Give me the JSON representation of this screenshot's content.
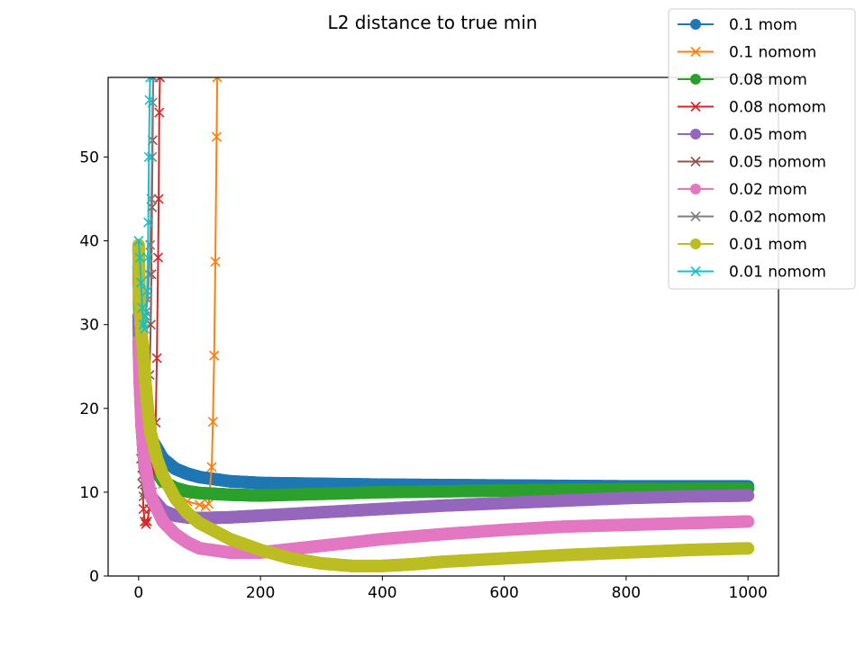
{
  "chart_data": {
    "type": "line",
    "title": "L2 distance to true min",
    "xlabel": "",
    "ylabel": "",
    "xlim": [
      -50,
      1050
    ],
    "ylim": [
      0,
      59.5
    ],
    "x_ticks": [
      0,
      200,
      400,
      600,
      800,
      1000
    ],
    "y_ticks": [
      0,
      10,
      20,
      30,
      40,
      50
    ],
    "grid": false,
    "legend_position": "top-right",
    "series": [
      {
        "name": "0.1 mom",
        "color": "#1f77b4",
        "marker": "circle",
        "kind": "mom",
        "points": [
          [
            0,
            37
          ],
          [
            2,
            30
          ],
          [
            5,
            24
          ],
          [
            10,
            19
          ],
          [
            20,
            16.5
          ],
          [
            40,
            14
          ],
          [
            60,
            12.8
          ],
          [
            80,
            12.2
          ],
          [
            100,
            11.8
          ],
          [
            150,
            11.3
          ],
          [
            200,
            11.1
          ],
          [
            300,
            11.0
          ],
          [
            400,
            10.9
          ],
          [
            500,
            10.85
          ],
          [
            600,
            10.8
          ],
          [
            700,
            10.75
          ],
          [
            800,
            10.7
          ],
          [
            900,
            10.7
          ],
          [
            1000,
            10.7
          ]
        ]
      },
      {
        "name": "0.1 nomom",
        "color": "#ff7f0e",
        "marker": "x",
        "kind": "nomom",
        "points": [
          [
            0,
            35
          ],
          [
            2,
            30
          ],
          [
            5,
            24
          ],
          [
            10,
            19
          ],
          [
            20,
            15
          ],
          [
            40,
            11
          ],
          [
            60,
            9.5
          ],
          [
            80,
            8.9
          ],
          [
            100,
            8.5
          ],
          [
            110,
            8.3
          ],
          [
            115,
            8.6
          ],
          [
            120,
            13
          ],
          [
            122,
            18.4
          ],
          [
            124,
            26.3
          ],
          [
            126,
            37.5
          ],
          [
            128,
            52.4
          ],
          [
            129,
            59.5
          ]
        ]
      },
      {
        "name": "0.08 mom",
        "color": "#2ca02c",
        "marker": "circle",
        "kind": "mom",
        "points": [
          [
            0,
            39
          ],
          [
            2,
            28
          ],
          [
            5,
            22
          ],
          [
            10,
            17
          ],
          [
            20,
            13.5
          ],
          [
            40,
            11.3
          ],
          [
            60,
            10.5
          ],
          [
            80,
            10.1
          ],
          [
            100,
            9.9
          ],
          [
            150,
            9.7
          ],
          [
            200,
            9.6
          ],
          [
            300,
            9.8
          ],
          [
            400,
            10.0
          ],
          [
            500,
            10.1
          ],
          [
            600,
            10.2
          ],
          [
            700,
            10.3
          ],
          [
            800,
            10.35
          ],
          [
            900,
            10.4
          ],
          [
            1000,
            10.4
          ]
        ]
      },
      {
        "name": "0.08 nomom",
        "color": "#d62728",
        "marker": "x",
        "kind": "nomom",
        "points": [
          [
            0,
            33
          ],
          [
            2,
            25
          ],
          [
            4,
            18
          ],
          [
            6,
            12
          ],
          [
            8,
            8
          ],
          [
            10,
            6.5
          ],
          [
            12,
            6.2
          ],
          [
            14,
            6.5
          ],
          [
            18,
            8
          ],
          [
            22,
            10
          ],
          [
            26,
            13
          ],
          [
            28,
            18.3
          ],
          [
            30,
            26
          ],
          [
            32,
            38
          ],
          [
            33,
            45
          ],
          [
            34,
            55.3
          ],
          [
            35,
            59.5
          ]
        ]
      },
      {
        "name": "0.05 mom",
        "color": "#9467bd",
        "marker": "circle",
        "kind": "mom",
        "points": [
          [
            0,
            31
          ],
          [
            2,
            24
          ],
          [
            5,
            18
          ],
          [
            10,
            13
          ],
          [
            20,
            9.5
          ],
          [
            40,
            7.8
          ],
          [
            60,
            7.2
          ],
          [
            80,
            7.0
          ],
          [
            100,
            6.9
          ],
          [
            150,
            7.0
          ],
          [
            200,
            7.2
          ],
          [
            300,
            7.6
          ],
          [
            400,
            8.0
          ],
          [
            500,
            8.4
          ],
          [
            600,
            8.7
          ],
          [
            700,
            9.0
          ],
          [
            800,
            9.3
          ],
          [
            900,
            9.5
          ],
          [
            1000,
            9.6
          ]
        ]
      },
      {
        "name": "0.05 nomom",
        "color": "#8c564b",
        "marker": "x",
        "kind": "nomom",
        "points": [
          [
            0,
            30
          ],
          [
            2,
            20
          ],
          [
            4,
            14
          ],
          [
            6,
            11
          ],
          [
            8,
            9.5
          ],
          [
            10,
            10
          ],
          [
            12,
            12
          ],
          [
            14,
            15
          ],
          [
            16,
            19
          ],
          [
            18,
            24
          ],
          [
            20,
            30
          ],
          [
            21,
            36
          ],
          [
            22,
            44
          ],
          [
            23,
            52
          ],
          [
            24,
            59.5
          ]
        ]
      },
      {
        "name": "0.02 mom",
        "color": "#e377c2",
        "marker": "circle",
        "kind": "mom",
        "points": [
          [
            0,
            28
          ],
          [
            2,
            23
          ],
          [
            5,
            18
          ],
          [
            10,
            13.5
          ],
          [
            20,
            9.5
          ],
          [
            40,
            6.5
          ],
          [
            60,
            5
          ],
          [
            80,
            4
          ],
          [
            100,
            3.3
          ],
          [
            150,
            2.8
          ],
          [
            200,
            2.8
          ],
          [
            250,
            3.2
          ],
          [
            300,
            3.6
          ],
          [
            400,
            4.4
          ],
          [
            500,
            5.0
          ],
          [
            600,
            5.5
          ],
          [
            700,
            5.9
          ],
          [
            800,
            6.1
          ],
          [
            900,
            6.3
          ],
          [
            1000,
            6.5
          ]
        ]
      },
      {
        "name": "0.02 nomom",
        "color": "#7f7f7f",
        "marker": "x",
        "kind": "nomom",
        "points": [
          [
            0,
            39
          ],
          [
            3,
            36
          ],
          [
            6,
            33
          ],
          [
            9,
            31
          ],
          [
            12,
            31.5
          ],
          [
            15,
            33
          ],
          [
            17,
            36
          ],
          [
            19,
            39.5
          ],
          [
            21,
            45
          ],
          [
            22,
            50
          ],
          [
            23,
            56.5
          ],
          [
            24,
            59.5
          ]
        ]
      },
      {
        "name": "0.01 mom",
        "color": "#bcbd22",
        "marker": "circle",
        "kind": "mom",
        "points": [
          [
            0,
            39.5
          ],
          [
            1,
            35
          ],
          [
            3,
            31
          ],
          [
            5,
            28.5
          ],
          [
            8,
            26.5
          ],
          [
            10,
            24
          ],
          [
            15,
            20
          ],
          [
            20,
            17
          ],
          [
            30,
            14
          ],
          [
            40,
            12
          ],
          [
            60,
            9.3
          ],
          [
            80,
            7.5
          ],
          [
            100,
            6.3
          ],
          [
            150,
            4.4
          ],
          [
            200,
            3.1
          ],
          [
            250,
            2.1
          ],
          [
            300,
            1.5
          ],
          [
            350,
            1.2
          ],
          [
            400,
            1.2
          ],
          [
            450,
            1.4
          ],
          [
            500,
            1.7
          ],
          [
            600,
            2.1
          ],
          [
            700,
            2.5
          ],
          [
            800,
            2.8
          ],
          [
            900,
            3.1
          ],
          [
            1000,
            3.3
          ]
        ]
      },
      {
        "name": "0.01 nomom",
        "color": "#17becf",
        "marker": "x",
        "kind": "nomom",
        "points": [
          [
            0,
            40
          ],
          [
            2,
            38
          ],
          [
            4,
            35
          ],
          [
            6,
            32
          ],
          [
            8,
            30
          ],
          [
            10,
            29.5
          ],
          [
            12,
            31
          ],
          [
            14,
            34
          ],
          [
            15,
            38
          ],
          [
            16,
            42.2
          ],
          [
            17,
            50
          ],
          [
            18,
            56.8
          ],
          [
            19,
            59.5
          ]
        ]
      }
    ]
  }
}
